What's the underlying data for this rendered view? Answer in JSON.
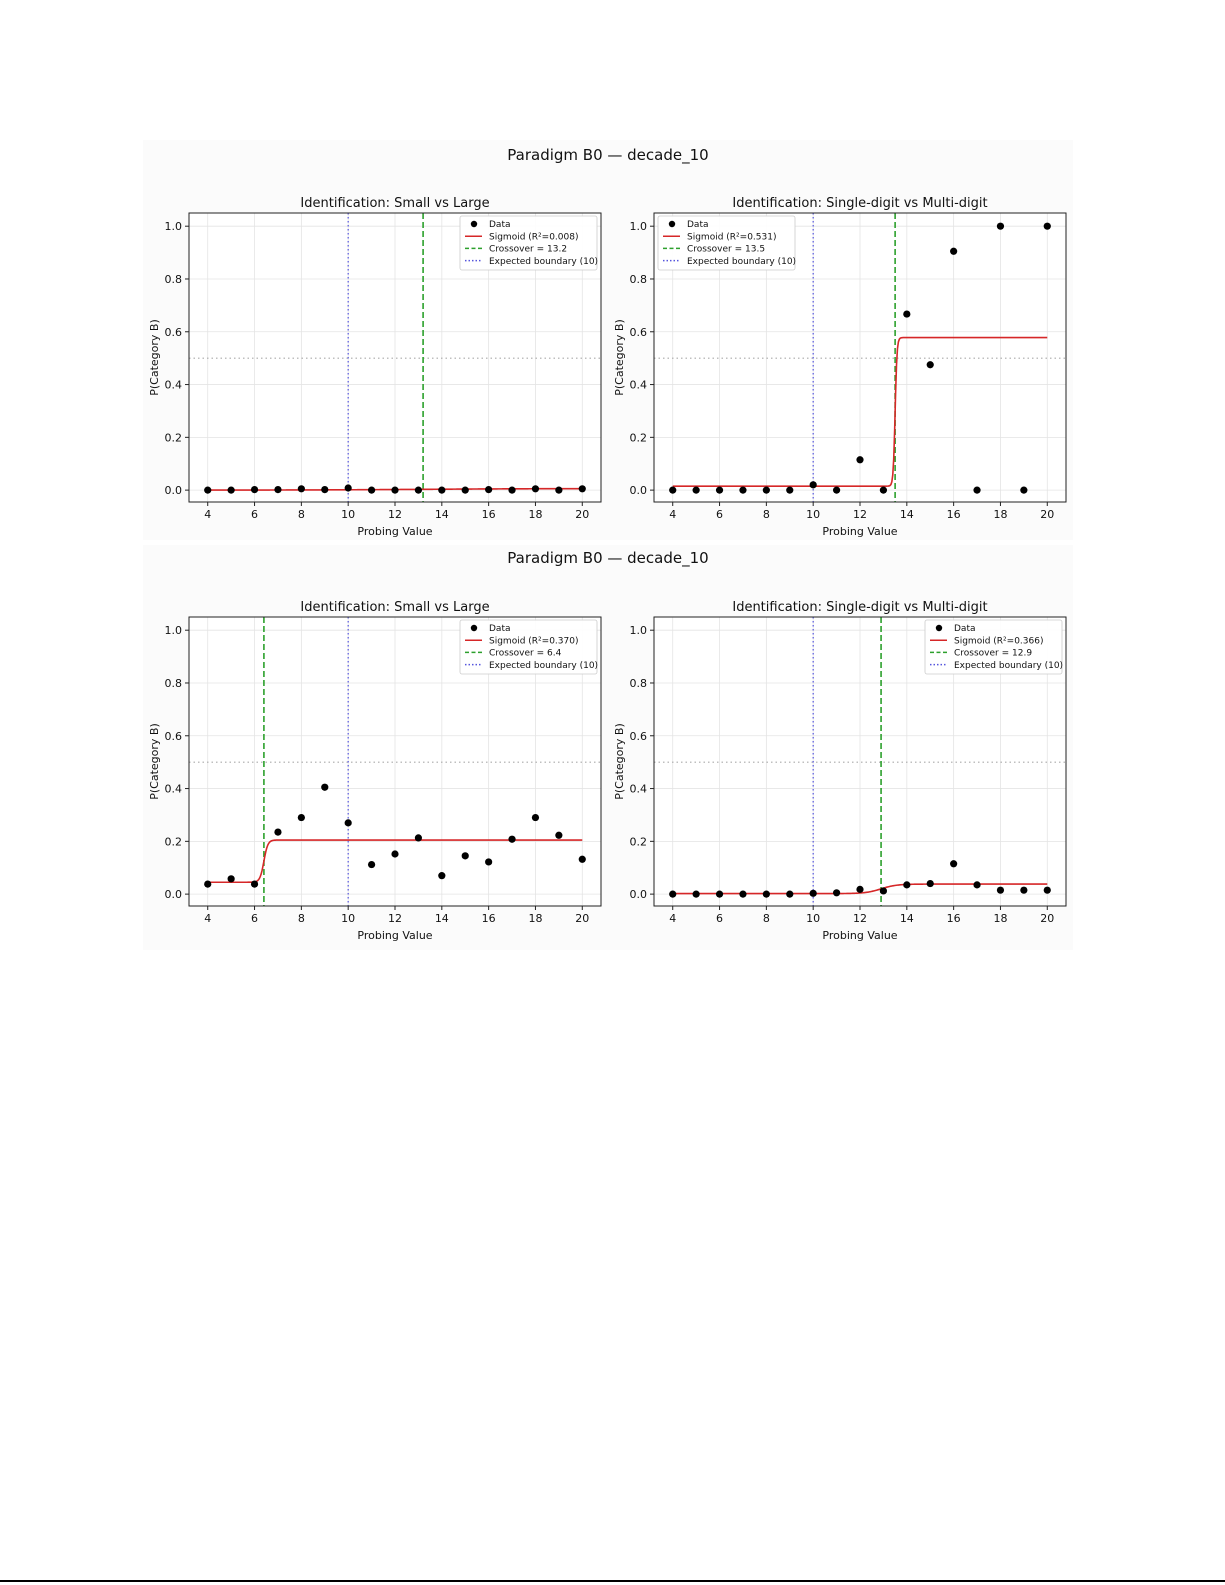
{
  "figures": [
    {
      "title": "Paradigm B0 — decade_10",
      "panels": [
        {
          "title": "Identification: Small vs Large",
          "legend_position": "upper right",
          "legend": [
            "Data",
            "Sigmoid (R²=0.008)",
            "Crossover = 13.2",
            "Expected boundary (10)"
          ],
          "vlines": {
            "crossover": 13.2,
            "expected": 10
          }
        },
        {
          "title": "Identification: Single-digit vs Multi-digit",
          "legend_position": "upper left",
          "legend": [
            "Data",
            "Sigmoid (R²=0.531)",
            "Crossover = 13.5",
            "Expected boundary (10)"
          ],
          "vlines": {
            "crossover": 13.5,
            "expected": 10
          }
        }
      ]
    },
    {
      "title": "Paradigm B0 — decade_10",
      "panels": [
        {
          "title": "Identification: Small vs Large",
          "legend_position": "upper right",
          "legend": [
            "Data",
            "Sigmoid (R²=0.370)",
            "Crossover = 6.4",
            "Expected boundary (10)"
          ],
          "vlines": {
            "crossover": 6.4,
            "expected": 10
          }
        },
        {
          "title": "Identification: Single-digit vs Multi-digit",
          "legend_position": "upper right",
          "legend": [
            "Data",
            "Sigmoid (R²=0.366)",
            "Crossover = 12.9",
            "Expected boundary (10)"
          ],
          "vlines": {
            "crossover": 12.9,
            "expected": 10
          }
        }
      ]
    }
  ],
  "axes": {
    "xlabel": "Probing Value",
    "ylabel": "P(Category B)",
    "xlim": [
      3.2,
      20.8
    ],
    "ylim": [
      -0.045,
      1.05
    ],
    "xticks": [
      4,
      6,
      8,
      10,
      12,
      14,
      16,
      18,
      20
    ],
    "yticks": [
      0.0,
      0.2,
      0.4,
      0.6,
      0.8,
      1.0
    ],
    "ytick_labels": [
      "0.0",
      "0.2",
      "0.4",
      "0.6",
      "0.8",
      "1.0"
    ],
    "chance_line": 0.5,
    "grid": true
  },
  "colors": {
    "data": "#000000",
    "sigmoid": "#d62728",
    "crossover": "#2ca02c",
    "expected": "#5555dd",
    "chance": "#aaaaaa",
    "grid": "#e4e4e4"
  },
  "chart_data": [
    {
      "type": "scatter",
      "title": "Identification: Small vs Large",
      "xlabel": "Probing Value",
      "ylabel": "P(Category B)",
      "series": [
        {
          "name": "Data",
          "kind": "points",
          "x": [
            4,
            5,
            6,
            7,
            8,
            9,
            10,
            11,
            12,
            13,
            14,
            15,
            16,
            17,
            18,
            19,
            20
          ],
          "y": [
            0.0,
            0.0,
            0.002,
            0.002,
            0.005,
            0.002,
            0.008,
            0.0,
            0.0,
            0.0,
            0.0,
            0.0,
            0.002,
            0.0,
            0.005,
            0.0,
            0.005
          ]
        },
        {
          "name": "Sigmoid (R²=0.008)",
          "kind": "sigmoid",
          "params": {
            "x0": 13.2,
            "k": 0.4,
            "lower": 0.0,
            "upper": 0.006,
            "xmin": 4,
            "xmax": 20
          }
        }
      ]
    },
    {
      "type": "scatter",
      "title": "Identification: Single-digit vs Multi-digit",
      "xlabel": "Probing Value",
      "ylabel": "P(Category B)",
      "series": [
        {
          "name": "Data",
          "kind": "points",
          "x": [
            4,
            5,
            6,
            7,
            8,
            9,
            10,
            11,
            12,
            13,
            14,
            15,
            16,
            17,
            18,
            19,
            20
          ],
          "y": [
            0.0,
            0.0,
            0.0,
            0.0,
            0.0,
            0.0,
            0.02,
            0.0,
            0.115,
            0.0,
            0.667,
            0.475,
            0.905,
            0.0,
            1.0,
            0.0,
            1.0
          ]
        },
        {
          "name": "Sigmoid (R²=0.531)",
          "kind": "sigmoid",
          "params": {
            "x0": 13.5,
            "k": 25,
            "lower": 0.015,
            "upper": 0.578,
            "xmin": 4,
            "xmax": 20
          }
        }
      ]
    },
    {
      "type": "scatter",
      "title": "Identification: Small vs Large",
      "xlabel": "Probing Value",
      "ylabel": "P(Category B)",
      "series": [
        {
          "name": "Data",
          "kind": "points",
          "x": [
            4,
            5,
            6,
            7,
            8,
            9,
            10,
            11,
            12,
            13,
            14,
            15,
            16,
            17,
            18,
            19,
            20
          ],
          "y": [
            0.038,
            0.058,
            0.038,
            0.235,
            0.29,
            0.405,
            0.27,
            0.112,
            0.152,
            0.213,
            0.07,
            0.145,
            0.122,
            0.208,
            0.29,
            0.223,
            0.132
          ]
        },
        {
          "name": "Sigmoid (R²=0.370)",
          "kind": "sigmoid",
          "params": {
            "x0": 6.4,
            "k": 12,
            "lower": 0.045,
            "upper": 0.205,
            "xmin": 4,
            "xmax": 20
          }
        }
      ]
    },
    {
      "type": "scatter",
      "title": "Identification: Single-digit vs Multi-digit",
      "xlabel": "Probing Value",
      "ylabel": "P(Category B)",
      "series": [
        {
          "name": "Data",
          "kind": "points",
          "x": [
            4,
            5,
            6,
            7,
            8,
            9,
            10,
            11,
            12,
            13,
            14,
            15,
            16,
            17,
            18,
            19,
            20
          ],
          "y": [
            0.0,
            0.0,
            0.0,
            0.0,
            0.0,
            0.0,
            0.003,
            0.005,
            0.018,
            0.012,
            0.035,
            0.04,
            0.115,
            0.035,
            0.015,
            0.015,
            0.015
          ]
        },
        {
          "name": "Sigmoid (R²=0.366)",
          "kind": "sigmoid",
          "params": {
            "x0": 12.9,
            "k": 3,
            "lower": 0.002,
            "upper": 0.038,
            "xmin": 4,
            "xmax": 20
          }
        }
      ]
    }
  ]
}
